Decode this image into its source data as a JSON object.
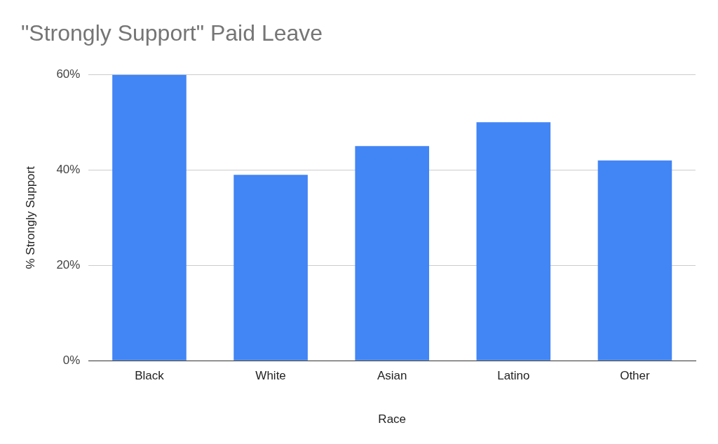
{
  "chart_data": {
    "type": "bar",
    "title": "\"Strongly Support\" Paid Leave",
    "xlabel": "Race",
    "ylabel": "% Strongly Support",
    "categories": [
      "Black",
      "White",
      "Asian",
      "Latino",
      "Other"
    ],
    "values": [
      60,
      39,
      45,
      50,
      42
    ],
    "color": "#4285f4",
    "ylim": [
      0,
      60
    ],
    "yticks": [
      {
        "value": 0,
        "label": "0%"
      },
      {
        "value": 20,
        "label": "20%"
      },
      {
        "value": 40,
        "label": "40%"
      },
      {
        "value": 60,
        "label": "60%"
      }
    ],
    "grid": "y",
    "legend": false
  }
}
